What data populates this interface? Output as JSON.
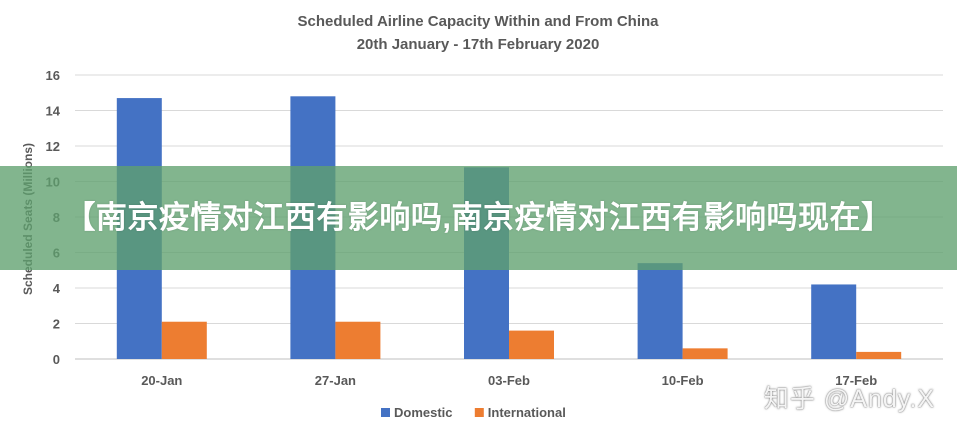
{
  "chart_data": {
    "type": "bar",
    "title": "Scheduled Airline Capacity Within and From China",
    "subtitle": "20th January - 17th February 2020",
    "ylabel": "Scheduled Seats (Millions)",
    "xlabel": "",
    "categories": [
      "20-Jan",
      "27-Jan",
      "03-Feb",
      "10-Feb",
      "17-Feb"
    ],
    "series": [
      {
        "name": "Domestic",
        "color": "#4472C4",
        "values": [
          14.7,
          14.8,
          10.8,
          5.4,
          4.2
        ]
      },
      {
        "name": "International",
        "color": "#ED7D31",
        "values": [
          2.1,
          2.1,
          1.6,
          0.6,
          0.4
        ]
      }
    ],
    "ylim": [
      0,
      16
    ],
    "yticks": [
      0,
      2,
      4,
      6,
      8,
      10,
      12,
      14,
      16
    ],
    "grid": true,
    "legend": "bottom"
  },
  "overlay": {
    "banner_text": "【南京疫情对江西有影响吗,南京疫情对江西有影响吗现在】",
    "watermark": "知乎 @Andy.X"
  }
}
